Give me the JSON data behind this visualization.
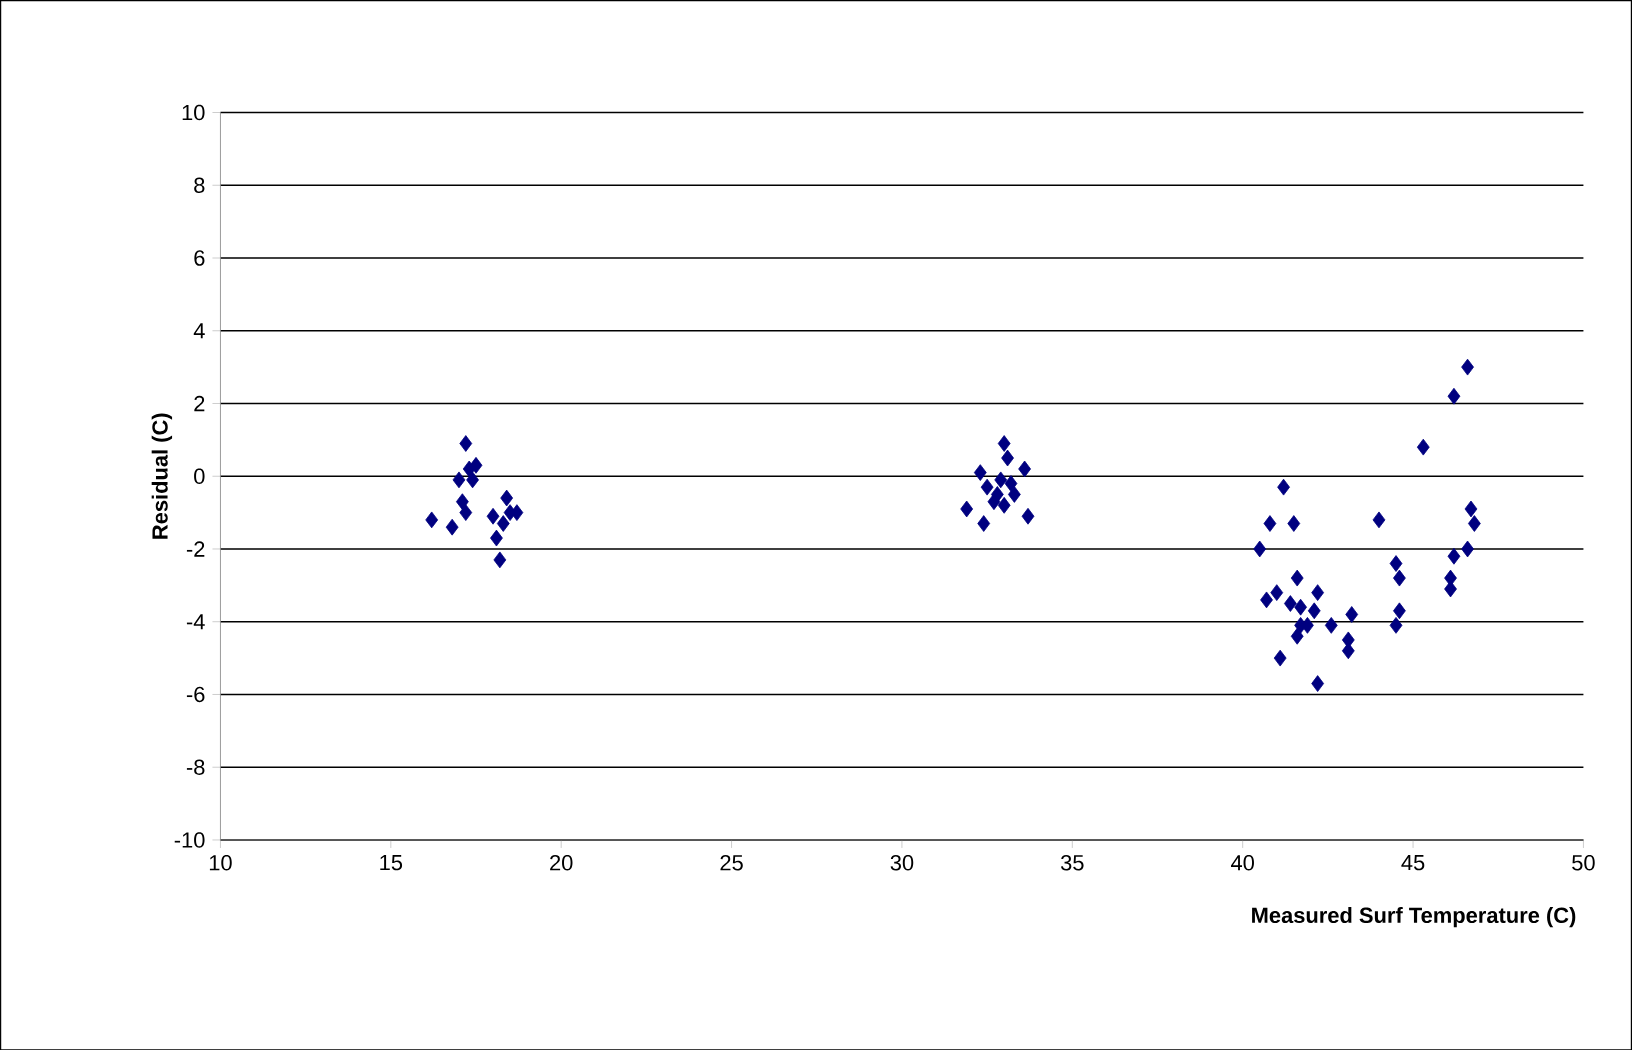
{
  "chart_data": {
    "type": "scatter",
    "xlabel": "Measured Surf Temperature (C)",
    "ylabel": "Residual (C)",
    "xlim": [
      10,
      50
    ],
    "xticks": [
      10,
      15,
      20,
      25,
      30,
      35,
      40,
      45,
      50
    ],
    "ylim": [
      -10,
      10
    ],
    "yticks": [
      -10,
      -8,
      -6,
      -4,
      -2,
      0,
      2,
      4,
      6,
      8,
      10
    ],
    "grid": "y",
    "marker": "diamond",
    "series": [
      {
        "color": "#000080",
        "x": [
          16.2,
          16.8,
          17.0,
          17.2,
          17.3,
          17.4,
          17.1,
          17.2,
          18.0,
          18.1,
          18.2,
          18.4,
          18.5,
          18.3,
          18.7,
          17.5,
          31.9,
          32.3,
          32.4,
          32.5,
          32.8,
          33.0,
          33.1,
          32.9,
          33.0,
          33.3,
          33.6,
          33.7,
          32.7,
          33.2,
          41.2,
          40.8,
          41.5,
          40.5,
          44.0,
          45.3,
          46.2,
          46.6,
          46.7,
          46.8,
          46.6,
          46.2,
          46.1,
          46.1,
          44.5,
          44.6,
          44.6,
          44.5,
          43.2,
          43.1,
          43.1,
          42.6,
          42.2,
          41.1,
          41.6,
          41.0,
          40.7,
          42.2,
          41.7,
          42.1,
          41.7,
          41.9,
          41.6,
          41.4
        ],
        "values": [
          -1.2,
          -1.4,
          -0.1,
          0.9,
          0.2,
          -0.1,
          -0.7,
          -1.0,
          -1.1,
          -1.7,
          -2.3,
          -0.6,
          -1.0,
          -1.3,
          -1.0,
          0.3,
          -0.9,
          0.1,
          -1.3,
          -0.3,
          -0.5,
          0.9,
          0.5,
          -0.1,
          -0.8,
          -0.5,
          0.2,
          -1.1,
          -0.7,
          -0.2,
          -0.3,
          -1.3,
          -1.3,
          -2.0,
          -1.2,
          0.8,
          2.2,
          3.0,
          -0.9,
          -1.3,
          -2.0,
          -2.2,
          -2.8,
          -3.1,
          -2.4,
          -2.8,
          -3.7,
          -4.1,
          -3.8,
          -4.5,
          -4.8,
          -4.1,
          -5.7,
          -5.0,
          -2.8,
          -3.2,
          -3.4,
          -3.2,
          -3.6,
          -3.7,
          -4.1,
          -4.1,
          -4.4,
          -3.5
        ]
      }
    ]
  }
}
